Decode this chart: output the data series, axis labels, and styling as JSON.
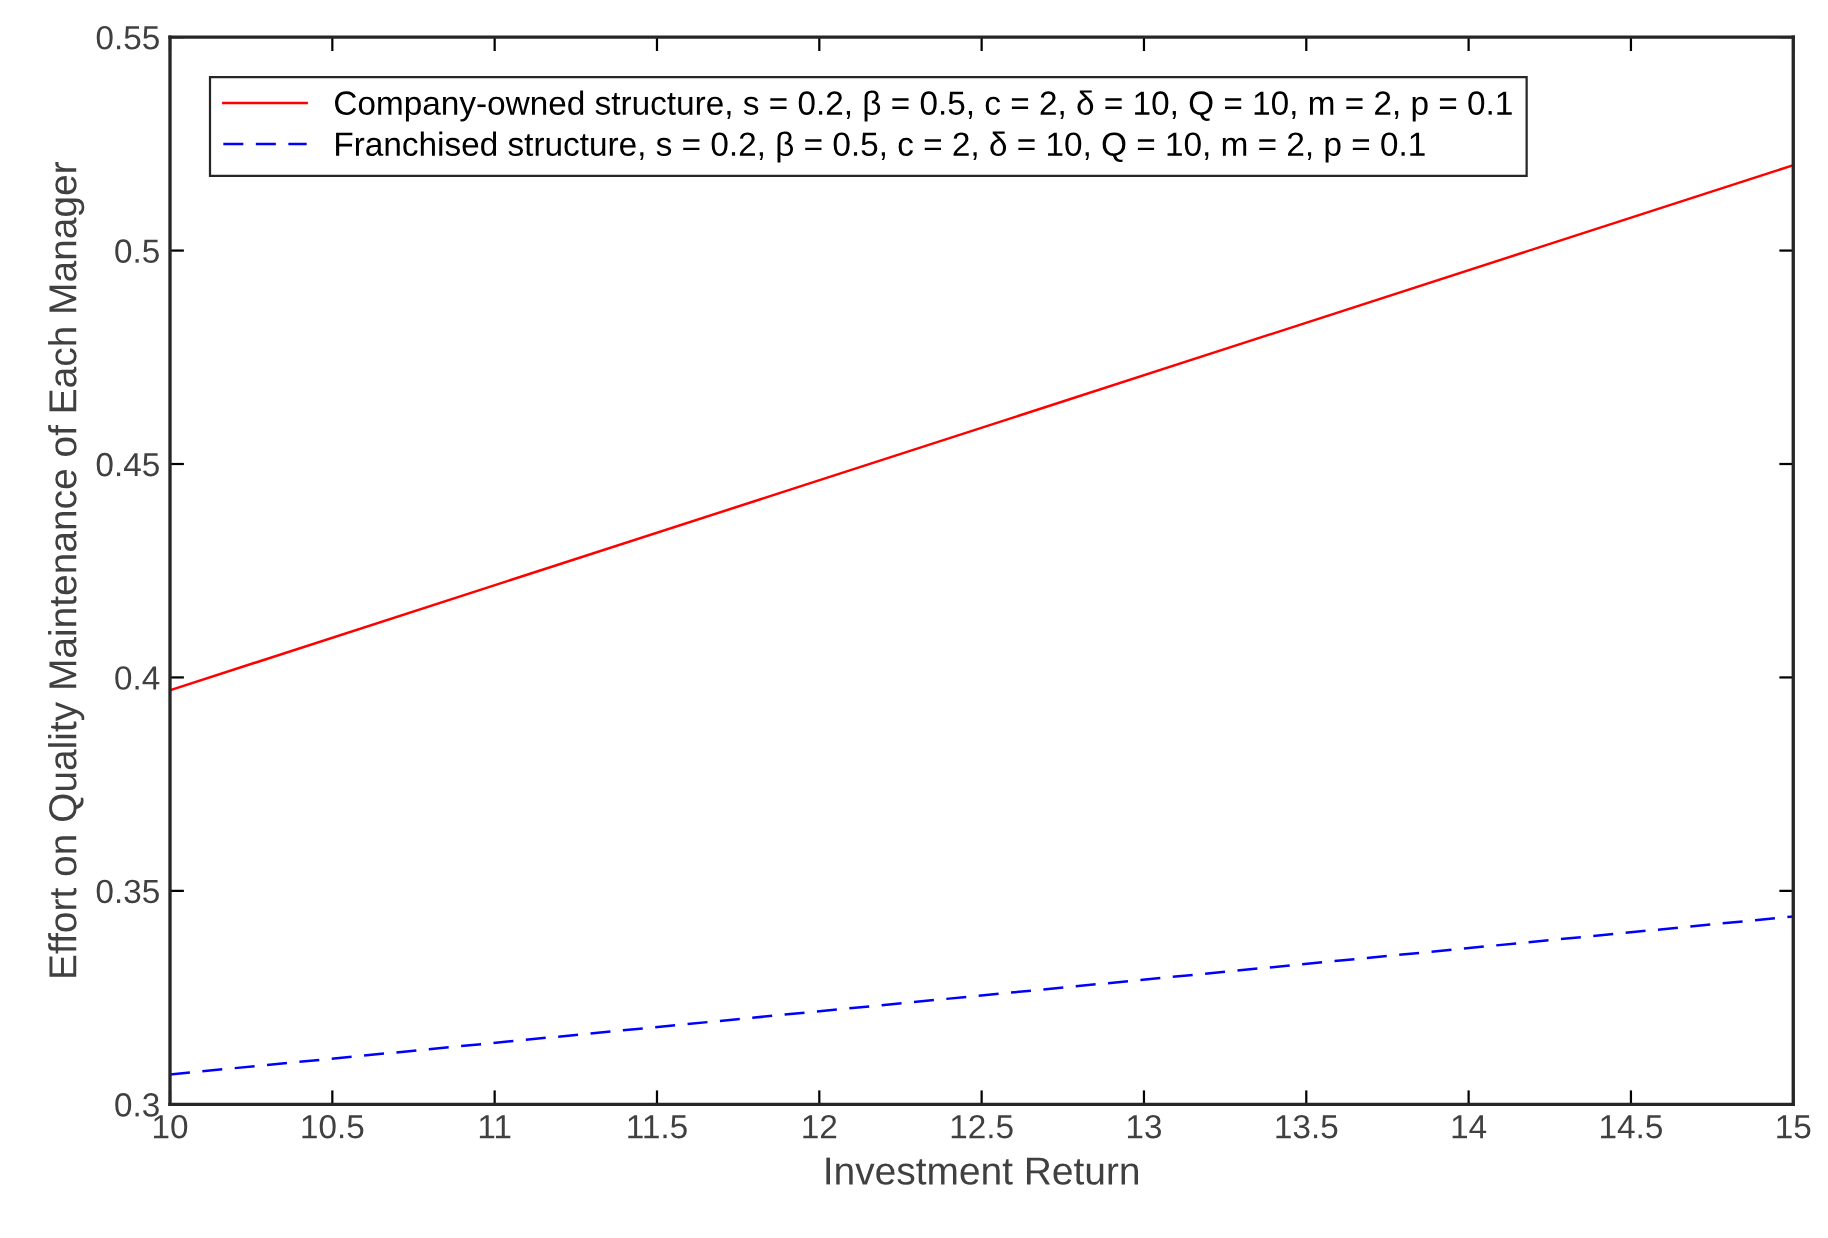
{
  "chart_data": {
    "type": "line",
    "xlabel": "Investment Return",
    "ylabel": "Effort on Quality Maintenance of Each Manager",
    "x": [
      10,
      15
    ],
    "series": [
      {
        "name": "Company-owned structure, s = 0.2, β = 0.5, c = 2, δ = 10, Q = 10, m = 2, p = 0.1",
        "color": "#ff0000",
        "values": [
          0.397,
          0.52
        ],
        "line_style": "solid"
      },
      {
        "name": "Franchised structure, s = 0.2, β = 0.5, c = 2, δ = 10, Q = 10, m = 2, p = 0.1",
        "color": "#0000ff",
        "values": [
          0.307,
          0.344
        ],
        "line_style": "dashed"
      }
    ],
    "xlim": [
      10,
      15
    ],
    "xticks": [
      10,
      10.5,
      11,
      11.5,
      12,
      12.5,
      13,
      13.5,
      14,
      14.5,
      15
    ],
    "ylim": [
      0.3,
      0.55
    ],
    "yticks": [
      0.3,
      0.35,
      0.4,
      0.45,
      0.5,
      0.55
    ],
    "grid": false,
    "legend": "top left",
    "marker": "none"
  }
}
